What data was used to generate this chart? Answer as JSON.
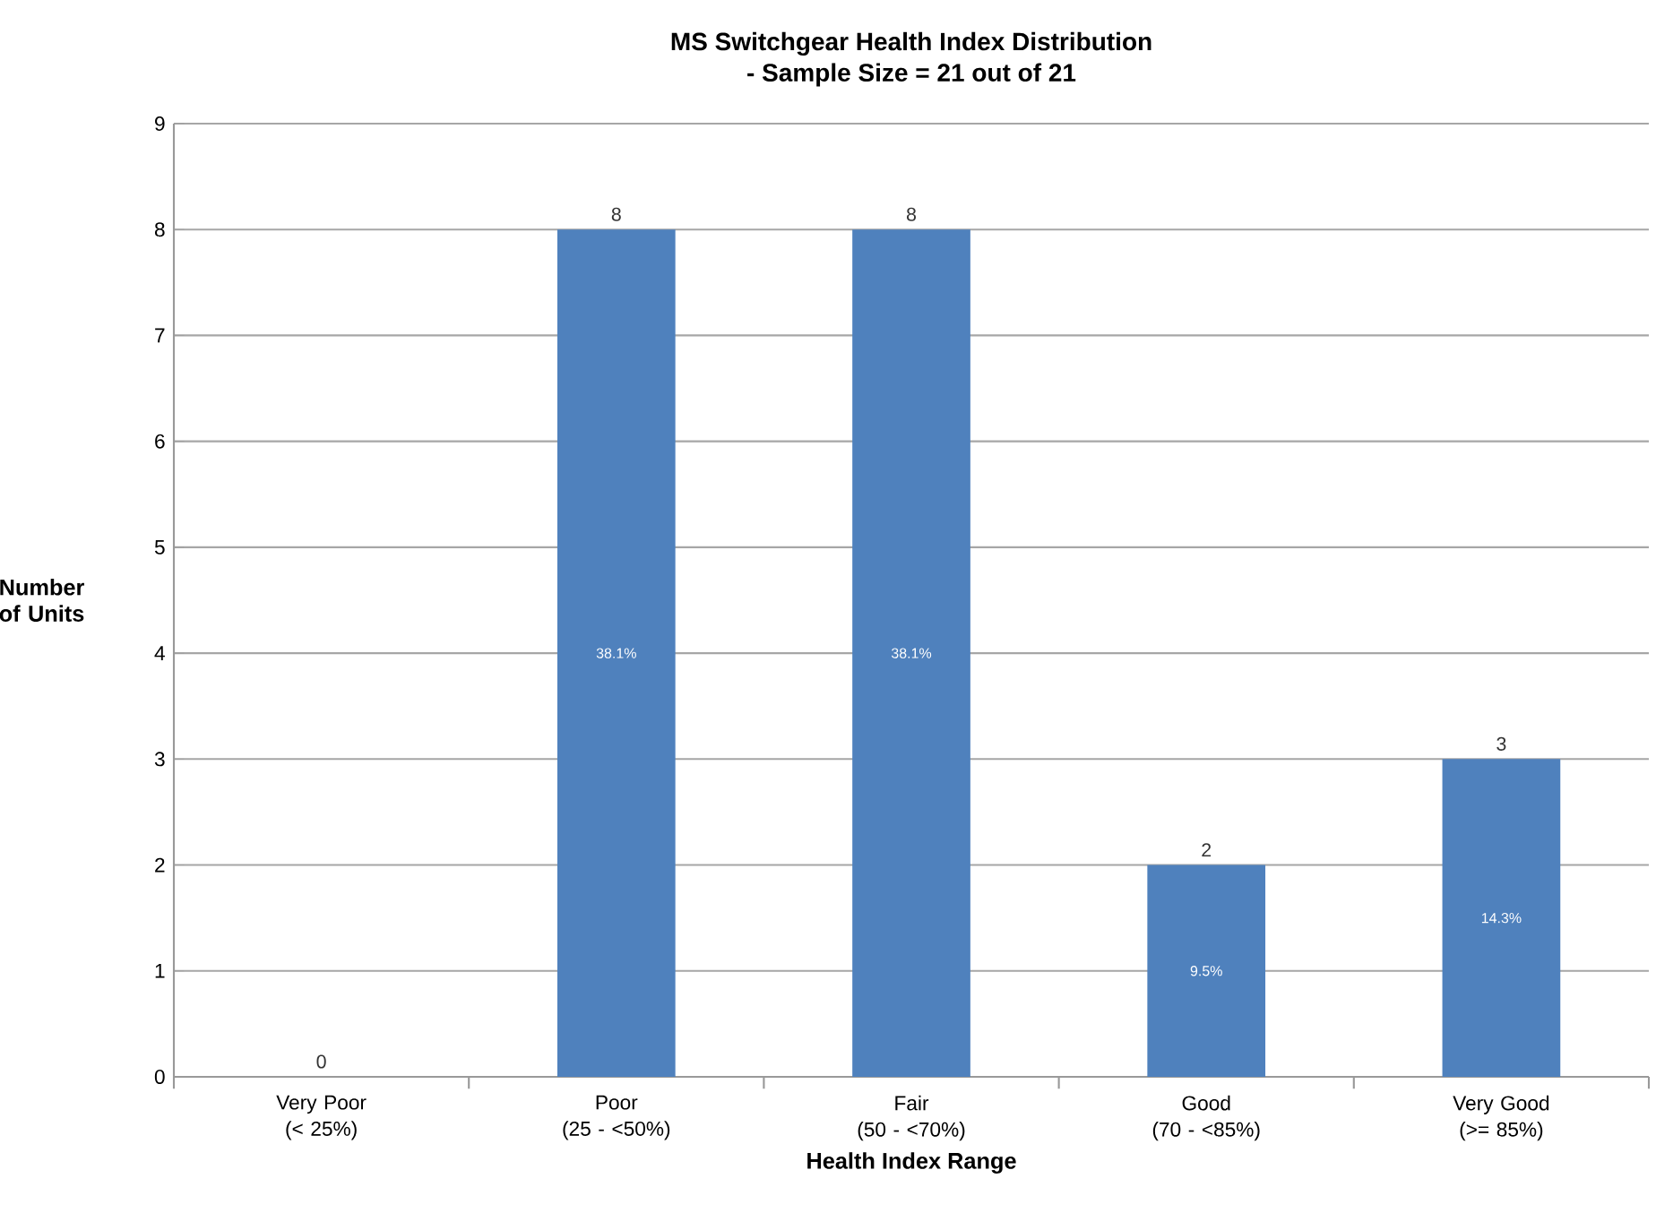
{
  "chart_data": {
    "type": "bar",
    "title": "MS Switchgear Health Index Distribution",
    "subtitle": "- Sample Size = 21 out of 21",
    "xlabel": "Health Index Range",
    "ylabel": "Number of Units",
    "categories": [
      "Very Poor (< 25%)",
      "Poor (25 - <50%)",
      "Fair (50 - <70%)",
      "Good (70 - <85%)",
      "Very Good (>= 85%)"
    ],
    "values": [
      0,
      8,
      8,
      2,
      3
    ],
    "color": "#4f81bd",
    "data_labels": true,
    "annotations": [
      "38.1%",
      "38.1%",
      "9.5%",
      "14.3%"
    ],
    "ylim": [
      0,
      9
    ],
    "yticks": [
      0,
      1,
      2,
      3,
      4,
      5,
      6,
      7,
      8,
      9
    ],
    "grid": "y"
  }
}
